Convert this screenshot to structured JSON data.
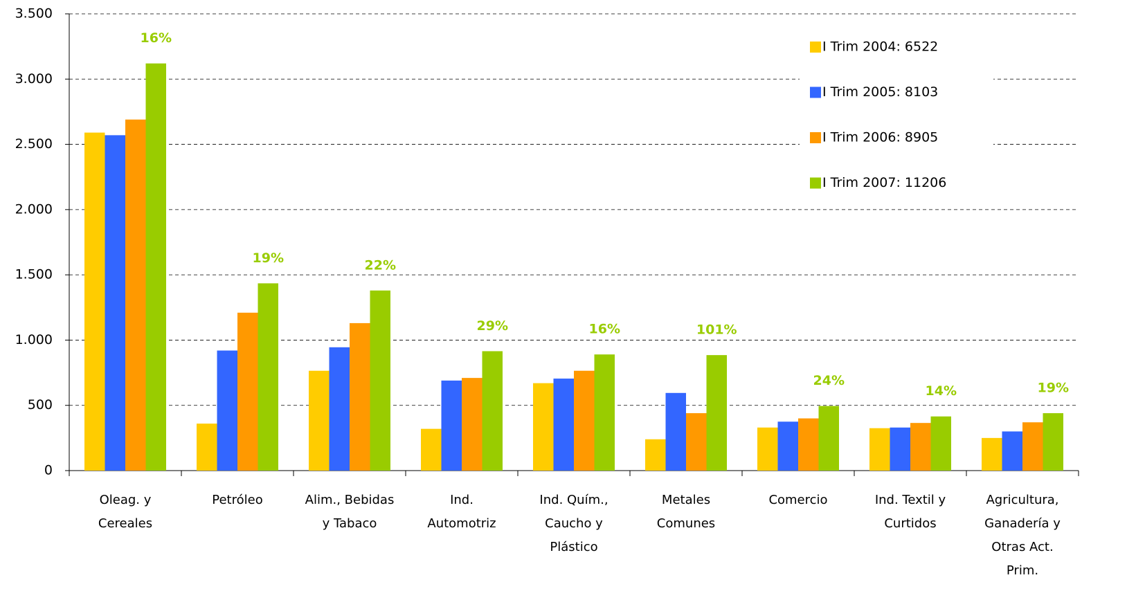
{
  "chart_data": {
    "type": "bar",
    "categories": [
      "Oleag. y Cereales",
      "Petróleo",
      "Alim., Bebidas y Tabaco",
      "Ind. Automotriz",
      "Ind. Quím., Caucho y Plástico",
      "Metales Comunes",
      "Comercio",
      "Ind. Textil y Curtidos",
      "Agricultura, Ganadería y Otras Act. Prim."
    ],
    "series": [
      {
        "name": "I Trim 2004: 6522",
        "color": "#ffcc00",
        "values": [
          2590,
          360,
          765,
          320,
          670,
          240,
          330,
          325,
          250
        ]
      },
      {
        "name": "I Trim 2005: 8103",
        "color": "#3366ff",
        "values": [
          2570,
          920,
          945,
          690,
          705,
          595,
          375,
          330,
          300
        ]
      },
      {
        "name": "I Trim 2006: 8905",
        "color": "#ff9900",
        "values": [
          2690,
          1210,
          1130,
          710,
          765,
          440,
          400,
          365,
          370
        ]
      },
      {
        "name": "I Trim 2007: 11206",
        "color": "#99cc00",
        "values": [
          3120,
          1435,
          1380,
          915,
          890,
          885,
          495,
          415,
          440
        ]
      }
    ],
    "annotations": [
      "16%",
      "19%",
      "22%",
      "29%",
      "16%",
      "101%",
      "24%",
      "14%",
      "19%"
    ],
    "annotation_color": "#99cc00",
    "ylim": [
      0,
      3500
    ],
    "yticks": [
      0,
      500,
      {
        "value": 1000,
        "label": "1.000"
      },
      {
        "value": 1500,
        "label": "1.500"
      },
      {
        "value": 2000,
        "label": "2.000"
      },
      {
        "value": 2500,
        "label": "2.500"
      },
      {
        "value": 3000,
        "label": "3.000"
      },
      {
        "value": 3500,
        "label": "3.500"
      }
    ],
    "grid": true,
    "legend": "top-right"
  }
}
